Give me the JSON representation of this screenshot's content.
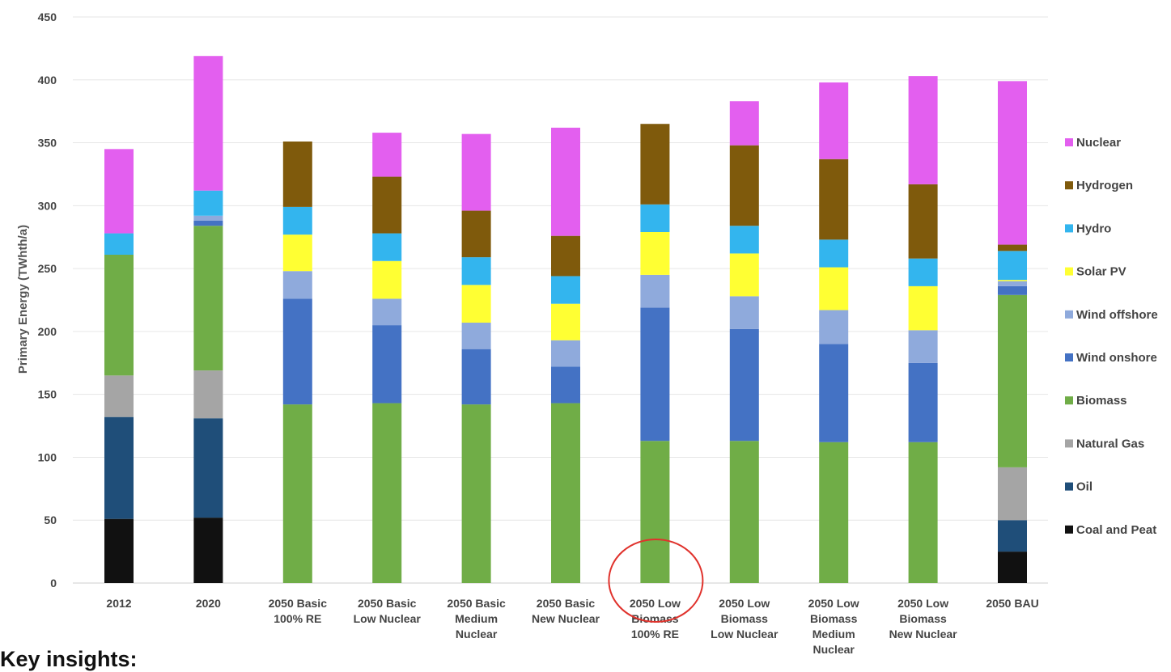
{
  "chart_data": {
    "type": "bar",
    "stacked": true,
    "ylabel": "Primary Energy (TWhth/a)",
    "ylim": [
      0,
      450
    ],
    "yticks": [
      0,
      50,
      100,
      150,
      200,
      250,
      300,
      350,
      400,
      450
    ],
    "grid": true,
    "legend_position": "right",
    "categories": [
      [
        "2012"
      ],
      [
        "2020"
      ],
      [
        "2050 Basic",
        "100% RE"
      ],
      [
        "2050 Basic",
        "Low Nuclear"
      ],
      [
        "2050 Basic",
        "Medium",
        "Nuclear"
      ],
      [
        "2050 Basic",
        "New Nuclear"
      ],
      [
        "2050 Low",
        "Biomass",
        "100% RE"
      ],
      [
        "2050 Low",
        "Biomass",
        "Low Nuclear"
      ],
      [
        "2050 Low",
        "Biomass",
        "Medium",
        "Nuclear"
      ],
      [
        "2050 Low",
        "Biomass",
        "New Nuclear"
      ],
      [
        "2050 BAU"
      ]
    ],
    "series": [
      {
        "name": "Coal and Peat",
        "color": "#111111",
        "values": [
          51,
          52,
          0,
          0,
          0,
          0,
          0,
          0,
          0,
          0,
          25
        ]
      },
      {
        "name": "Oil",
        "color": "#1f4e79",
        "values": [
          81,
          79,
          0,
          0,
          0,
          0,
          0,
          0,
          0,
          0,
          25
        ]
      },
      {
        "name": "Natural Gas",
        "color": "#a5a5a5",
        "values": [
          33,
          38,
          0,
          0,
          0,
          0,
          0,
          0,
          0,
          0,
          42
        ]
      },
      {
        "name": "Biomass",
        "color": "#70ad47",
        "values": [
          96,
          115,
          142,
          143,
          142,
          143,
          113,
          113,
          112,
          112,
          137
        ]
      },
      {
        "name": "Wind onshore",
        "color": "#4472c4",
        "values": [
          0,
          4,
          84,
          62,
          44,
          29,
          106,
          89,
          78,
          63,
          7
        ]
      },
      {
        "name": "Wind offshore",
        "color": "#8faadc",
        "values": [
          0,
          4,
          22,
          21,
          21,
          21,
          26,
          26,
          27,
          26,
          4
        ]
      },
      {
        "name": "Solar PV",
        "color": "#ffff33",
        "values": [
          0,
          0,
          29,
          30,
          30,
          29,
          34,
          34,
          34,
          35,
          1
        ]
      },
      {
        "name": "Hydro",
        "color": "#33b5ee",
        "values": [
          17,
          20,
          22,
          22,
          22,
          22,
          22,
          22,
          22,
          22,
          23
        ]
      },
      {
        "name": "Hydrogen",
        "color": "#7f5a0c",
        "values": [
          0,
          0,
          52,
          45,
          37,
          32,
          64,
          64,
          64,
          59,
          5
        ]
      },
      {
        "name": "Nuclear",
        "color": "#e35fef",
        "values": [
          67,
          107,
          0,
          35,
          61,
          86,
          0,
          35,
          61,
          86,
          130
        ]
      }
    ],
    "highlight_category_index": 6
  },
  "footer": {
    "heading": "Key insights:"
  }
}
